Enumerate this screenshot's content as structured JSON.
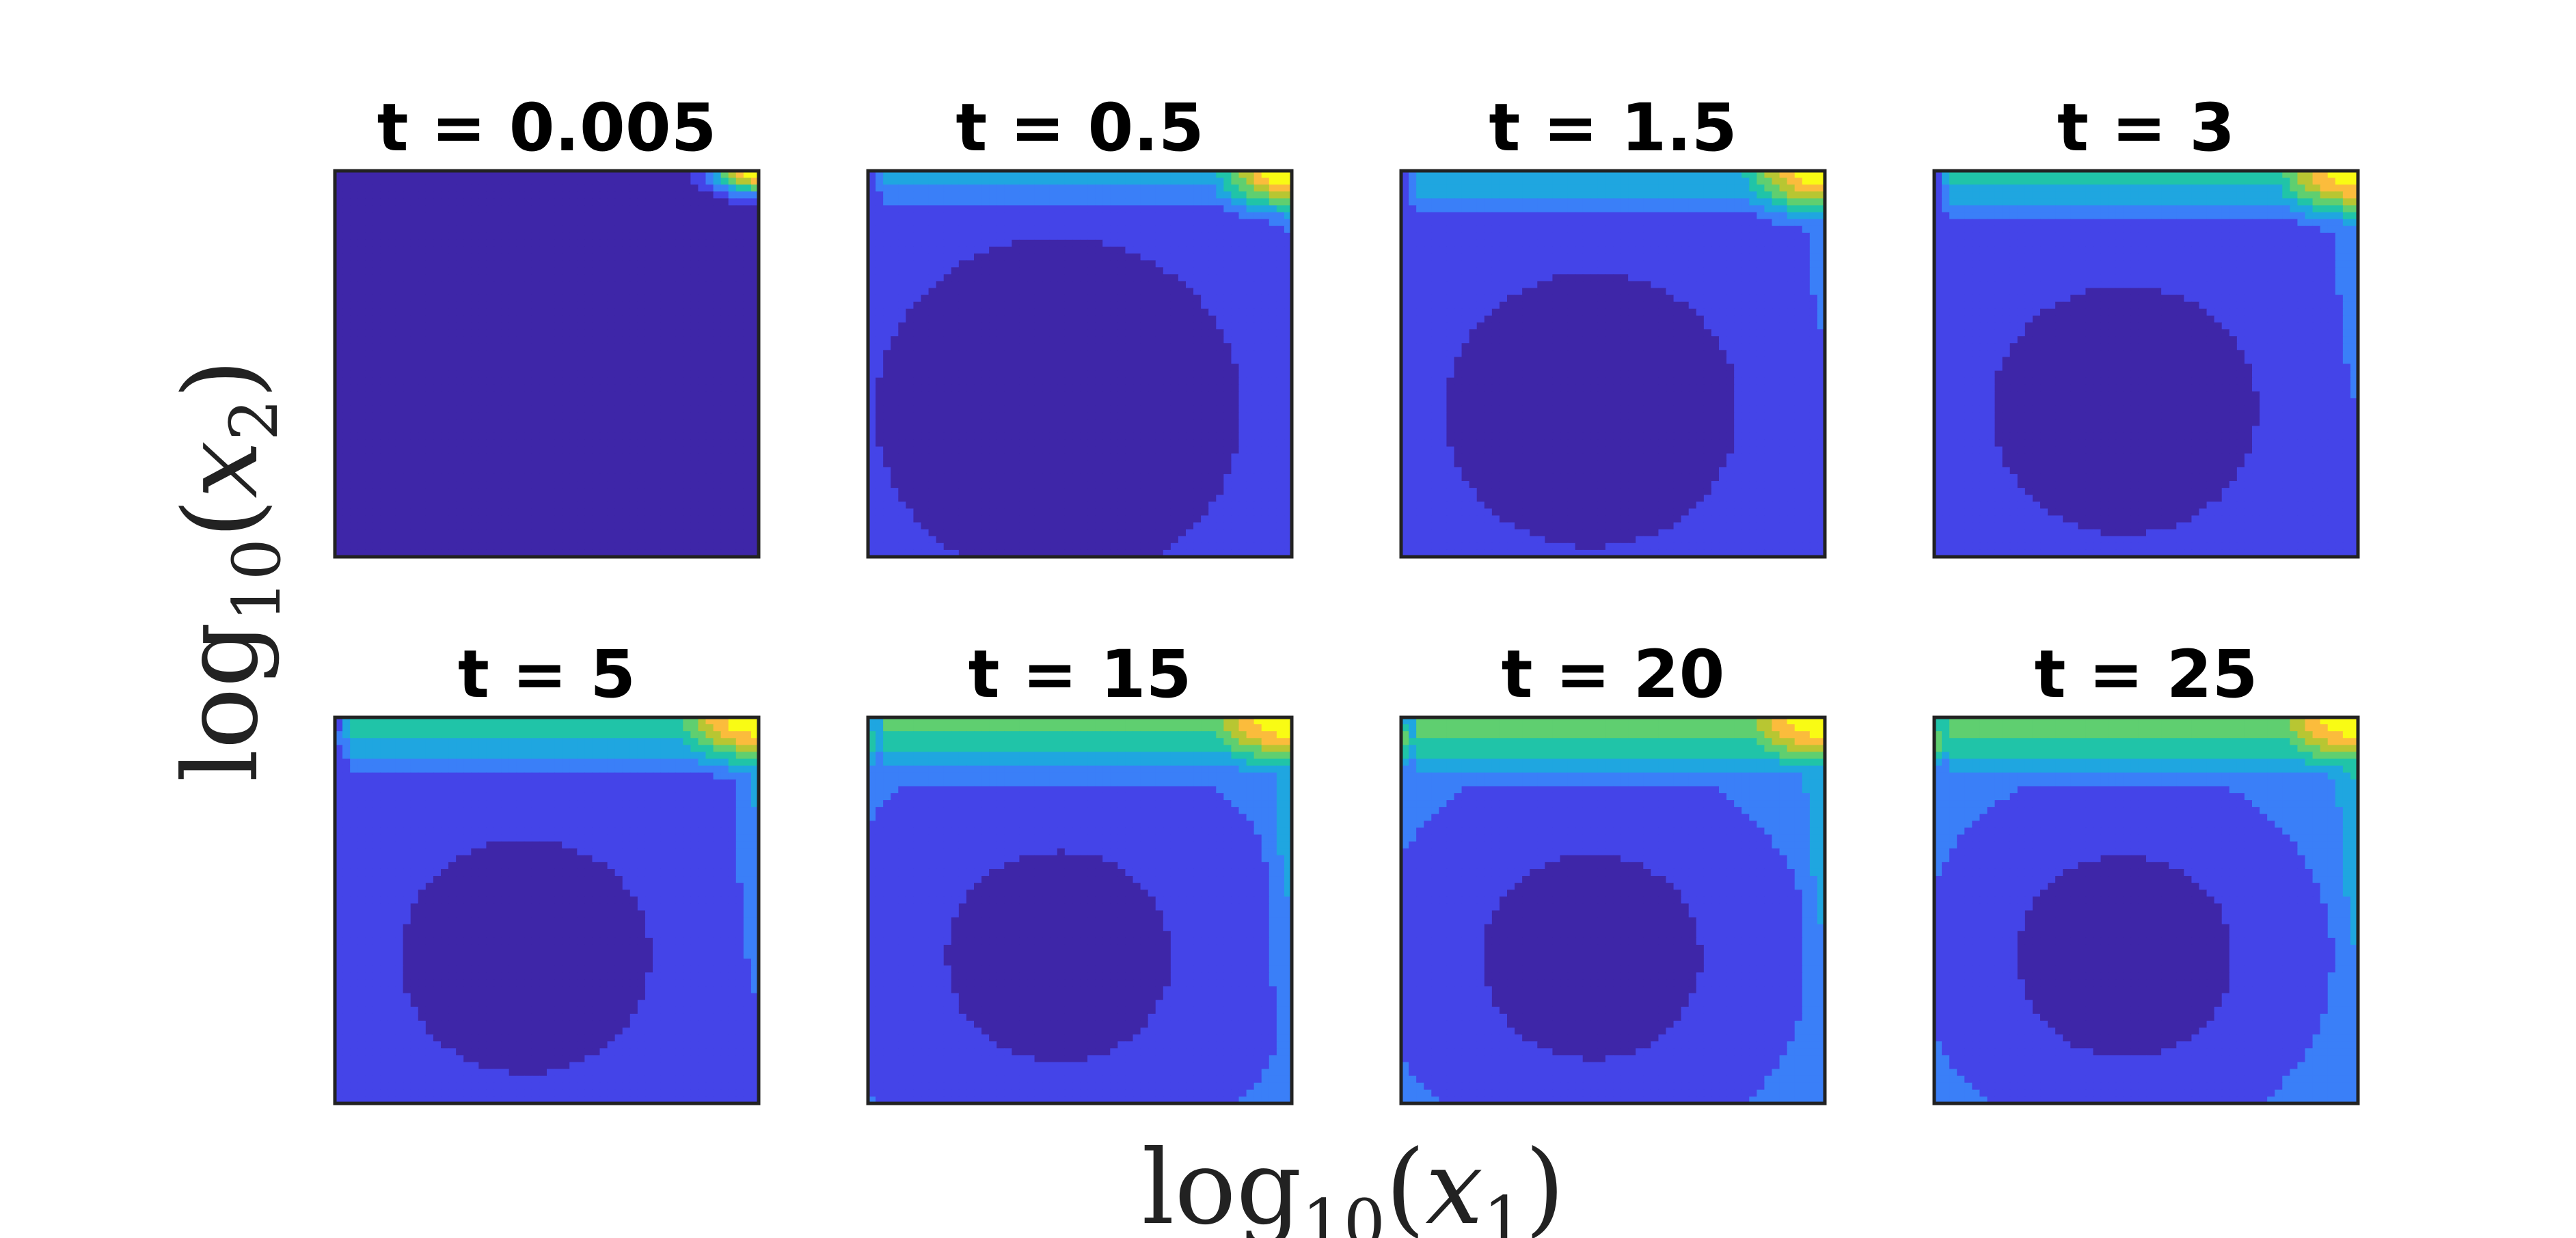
{
  "chart_data": {
    "type": "heatmap",
    "subtype": "filled-contour",
    "xlabel": {
      "base": "log",
      "sub": "10",
      "paren_open": "(",
      "var": "x",
      "var_sub": "1",
      "paren_close": ")"
    },
    "ylabel": {
      "base": "log",
      "sub": "10",
      "paren_open": "(",
      "var": "x",
      "var_sub": "2",
      "paren_close": ")"
    },
    "colormap": [
      "#3e26a8",
      "#4444e8",
      "#3a7ff8",
      "#1fa6e0",
      "#20c4a8",
      "#5fcf70",
      "#b8c632",
      "#fbbc3c",
      "#f9fb14"
    ],
    "contour_levels": 9,
    "grid": false,
    "legend": "none",
    "panels": [
      {
        "title": "t = 0.005",
        "t": 0.005
      },
      {
        "title": "t = 0.5",
        "t": 0.5
      },
      {
        "title": "t = 1.5",
        "t": 1.5
      },
      {
        "title": "t = 3",
        "t": 3
      },
      {
        "title": "t = 5",
        "t": 5
      },
      {
        "title": "t = 15",
        "t": 15
      },
      {
        "title": "t = 20",
        "t": 20
      },
      {
        "title": "t = 25",
        "t": 25
      }
    ]
  }
}
